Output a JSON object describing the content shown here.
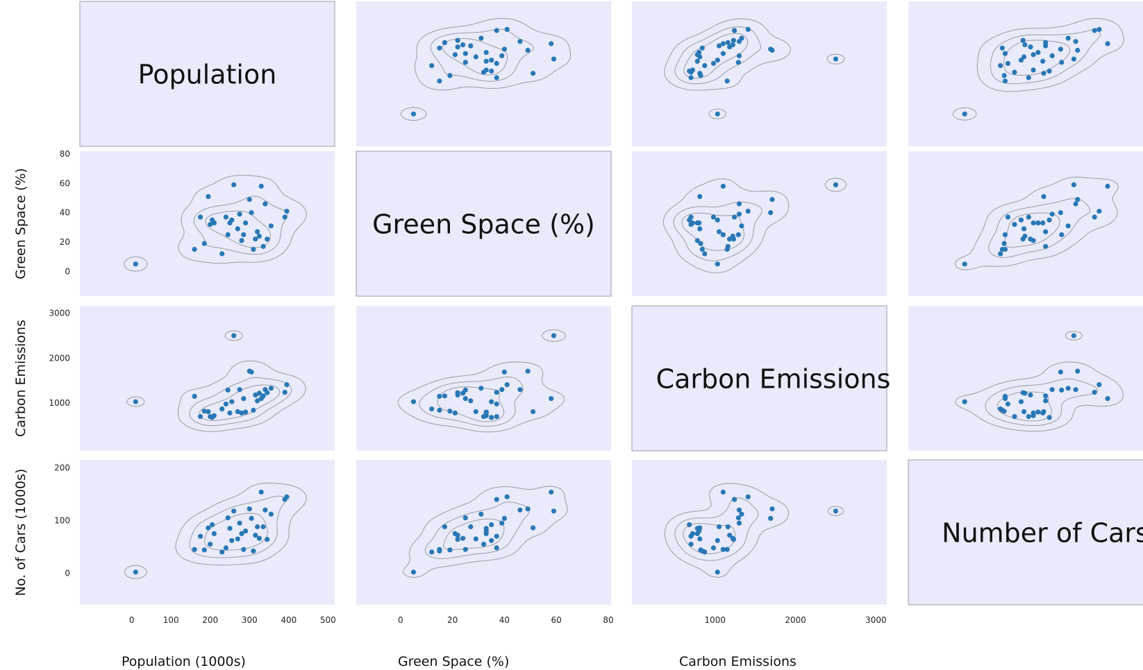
{
  "chart_data": {
    "type": "scatter",
    "layout": "pair-grid",
    "colors": {
      "panel": "#e9ebfb",
      "point": "#2878b5",
      "contour": "#9a9a9a",
      "frame": "#9a9aa8"
    },
    "variables": [
      {
        "key": "pop",
        "diag_label": "Population",
        "xlabel": "Population (1000s)",
        "ylabel": "",
        "ticks": [
          0,
          100,
          200,
          300,
          400,
          500
        ],
        "range": [
          -125,
          510
        ]
      },
      {
        "key": "green",
        "diag_label": "Green Space (%)",
        "xlabel": "Green Space (%)",
        "ylabel": "Green Space (%)",
        "ticks": [
          0,
          20,
          40,
          60,
          80
        ],
        "range": [
          -16,
          80
        ]
      },
      {
        "key": "carbon",
        "diag_label": "Carbon Emissions",
        "xlabel": "Carbon Emissions",
        "ylabel": "Carbon Emissions",
        "ticks": [
          1000,
          2000,
          3000
        ],
        "range": [
          0,
          3100
        ]
      },
      {
        "key": "cars",
        "diag_label": "Number of Cars",
        "xlabel": "",
        "ylabel": "No. of Cars (1000s)",
        "ticks": [
          0,
          100,
          200
        ],
        "range": [
          -55,
          210
        ]
      }
    ],
    "ytick_ranges": {
      "green": [
        -15,
        80
      ],
      "carbon": [
        0,
        3100
      ],
      "cars": [
        -55,
        210
      ]
    },
    "points": [
      {
        "pop": 10,
        "green": 5,
        "carbon": 1030,
        "cars": 2
      },
      {
        "pop": 160,
        "green": 15,
        "carbon": 1150,
        "cars": 45
      },
      {
        "pop": 175,
        "green": 37,
        "carbon": 700,
        "cars": 70
      },
      {
        "pop": 185,
        "green": 19,
        "carbon": 820,
        "cars": 44
      },
      {
        "pop": 195,
        "green": 51,
        "carbon": 810,
        "cars": 86
      },
      {
        "pop": 200,
        "green": 32,
        "carbon": 700,
        "cars": 55
      },
      {
        "pop": 205,
        "green": 35,
        "carbon": 680,
        "cars": 92
      },
      {
        "pop": 210,
        "green": 33,
        "carbon": 720,
        "cars": 75
      },
      {
        "pop": 230,
        "green": 12,
        "carbon": 870,
        "cars": 40
      },
      {
        "pop": 240,
        "green": 37,
        "carbon": 980,
        "cars": 48
      },
      {
        "pop": 245,
        "green": 25,
        "carbon": 1290,
        "cars": 105
      },
      {
        "pop": 250,
        "green": 33,
        "carbon": 780,
        "cars": 85
      },
      {
        "pop": 255,
        "green": 35,
        "carbon": 1030,
        "cars": 62
      },
      {
        "pop": 260,
        "green": 59,
        "carbon": 2500,
        "cars": 118
      },
      {
        "pop": 270,
        "green": 29,
        "carbon": 810,
        "cars": 65
      },
      {
        "pop": 275,
        "green": 39,
        "carbon": 1300,
        "cars": 95
      },
      {
        "pop": 280,
        "green": 21,
        "carbon": 780,
        "cars": 75
      },
      {
        "pop": 285,
        "green": 25,
        "carbon": 1100,
        "cars": 45
      },
      {
        "pop": 290,
        "green": 33,
        "carbon": 800,
        "cars": 80
      },
      {
        "pop": 300,
        "green": 49,
        "carbon": 1710,
        "cars": 122
      },
      {
        "pop": 305,
        "green": 40,
        "carbon": 1690,
        "cars": 104
      },
      {
        "pop": 310,
        "green": 15,
        "carbon": 840,
        "cars": 42
      },
      {
        "pop": 315,
        "green": 22,
        "carbon": 1180,
        "cars": 72
      },
      {
        "pop": 320,
        "green": 27,
        "carbon": 1050,
        "cars": 88
      },
      {
        "pop": 325,
        "green": 24,
        "carbon": 1220,
        "cars": 66
      },
      {
        "pop": 330,
        "green": 58,
        "carbon": 1100,
        "cars": 154
      },
      {
        "pop": 335,
        "green": 17,
        "carbon": 1160,
        "cars": 88
      },
      {
        "pop": 340,
        "green": 46,
        "carbon": 1300,
        "cars": 120
      },
      {
        "pop": 345,
        "green": 22,
        "carbon": 1230,
        "cars": 64
      },
      {
        "pop": 355,
        "green": 31,
        "carbon": 1330,
        "cars": 112
      },
      {
        "pop": 390,
        "green": 37,
        "carbon": 1240,
        "cars": 140
      },
      {
        "pop": 395,
        "green": 41,
        "carbon": 1410,
        "cars": 145
      }
    ]
  }
}
